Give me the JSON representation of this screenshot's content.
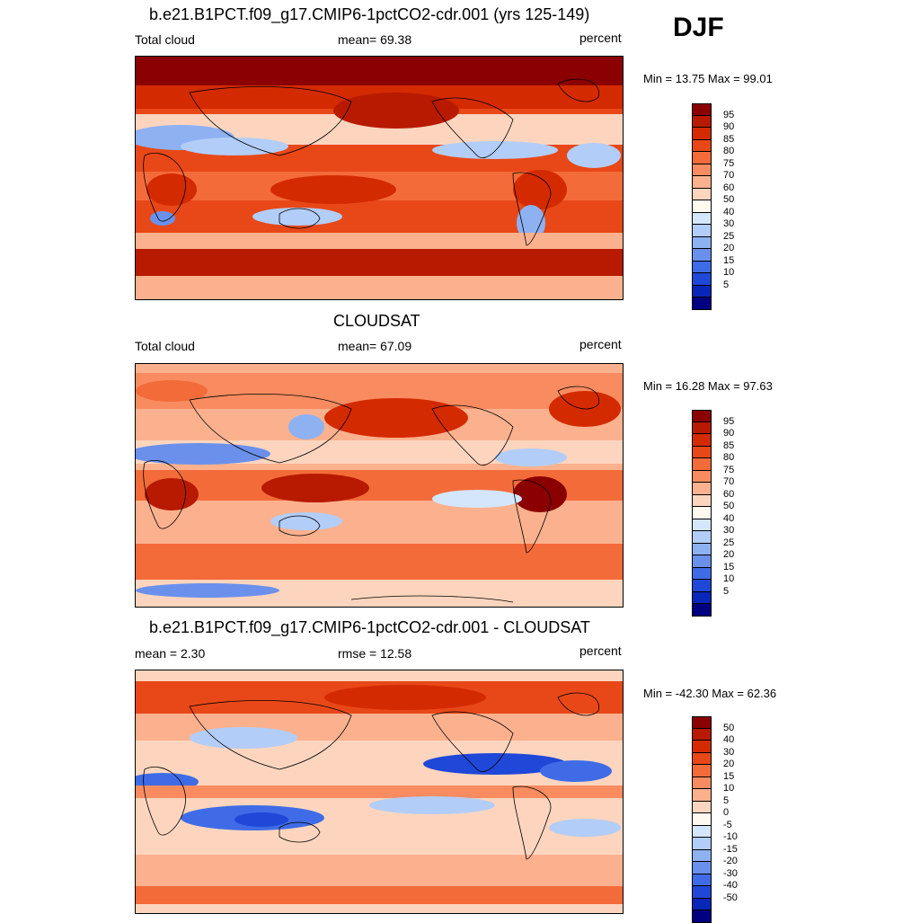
{
  "season": "DJF",
  "units": "percent",
  "colors": {
    "abs_scale": [
      "#8b0000",
      "#b71a00",
      "#d42a00",
      "#e84818",
      "#f46b3a",
      "#f88c60",
      "#fbb18e",
      "#fdd5be",
      "#fffaf0",
      "#d4e6fb",
      "#b2cdf7",
      "#8eb1f2",
      "#6a90ec",
      "#3f6ce6",
      "#1f47d8",
      "#0826b8",
      "#000080"
    ],
    "diff_scale": [
      "#8b0000",
      "#b71a00",
      "#d42a00",
      "#e84818",
      "#f46b3a",
      "#f88c60",
      "#fbb18e",
      "#fdd5be",
      "#fffaf0",
      "#d4e6fb",
      "#b2cdf7",
      "#8eb1f2",
      "#6a90ec",
      "#3f6ce6",
      "#1f47d8",
      "#0826b8",
      "#000080"
    ]
  },
  "panels": [
    {
      "title": "b.e21.B1PCT.f09_g17.CMIP6-1pctCO2-cdr.001 (yrs 125-149)",
      "left_label": "Total cloud",
      "center_label": "mean=  69.38",
      "right_label": "percent",
      "minmax": "Min =  13.75 Max =  99.01",
      "ticks": [
        "95",
        "90",
        "85",
        "80",
        "75",
        "70",
        "60",
        "50",
        "40",
        "30",
        "25",
        "20",
        "15",
        "10",
        "5"
      ]
    },
    {
      "title": "CLOUDSAT",
      "left_label": "Total cloud",
      "center_label": "mean=  67.09",
      "right_label": "percent",
      "minmax": "Min =  16.28 Max =  97.63",
      "ticks": [
        "95",
        "90",
        "85",
        "80",
        "75",
        "70",
        "60",
        "50",
        "40",
        "30",
        "25",
        "20",
        "15",
        "10",
        "5"
      ]
    },
    {
      "title": "b.e21.B1PCT.f09_g17.CMIP6-1pctCO2-cdr.001 - CLOUDSAT",
      "left_label": "mean =   2.30",
      "center_label": "rmse =  12.58",
      "right_label": "percent",
      "minmax": "Min = -42.30 Max =  62.36",
      "ticks": [
        "50",
        "40",
        "30",
        "20",
        "15",
        "10",
        "5",
        "0",
        "-5",
        "-10",
        "-15",
        "-20",
        "-30",
        "-40",
        "-50"
      ]
    }
  ],
  "chart_data": [
    {
      "type": "heatmap",
      "title": "b.e21.B1PCT.f09_g17.CMIP6-1pctCO2-cdr.001 (yrs 125-149)",
      "variable": "Total cloud",
      "units": "percent",
      "mean": 69.38,
      "min": 13.75,
      "max": 99.01,
      "contour_levels": [
        5,
        10,
        15,
        20,
        25,
        30,
        40,
        50,
        60,
        70,
        75,
        80,
        85,
        90,
        95
      ]
    },
    {
      "type": "heatmap",
      "title": "CLOUDSAT",
      "variable": "Total cloud",
      "units": "percent",
      "mean": 67.09,
      "min": 16.28,
      "max": 97.63,
      "contour_levels": [
        5,
        10,
        15,
        20,
        25,
        30,
        40,
        50,
        60,
        70,
        75,
        80,
        85,
        90,
        95
      ]
    },
    {
      "type": "heatmap",
      "title": "b.e21.B1PCT.f09_g17.CMIP6-1pctCO2-cdr.001 - CLOUDSAT",
      "units": "percent",
      "mean": 2.3,
      "rmse": 12.58,
      "min": -42.3,
      "max": 62.36,
      "contour_levels": [
        -50,
        -40,
        -30,
        -20,
        -15,
        -10,
        -5,
        0,
        5,
        10,
        15,
        20,
        30,
        40,
        50
      ]
    }
  ]
}
